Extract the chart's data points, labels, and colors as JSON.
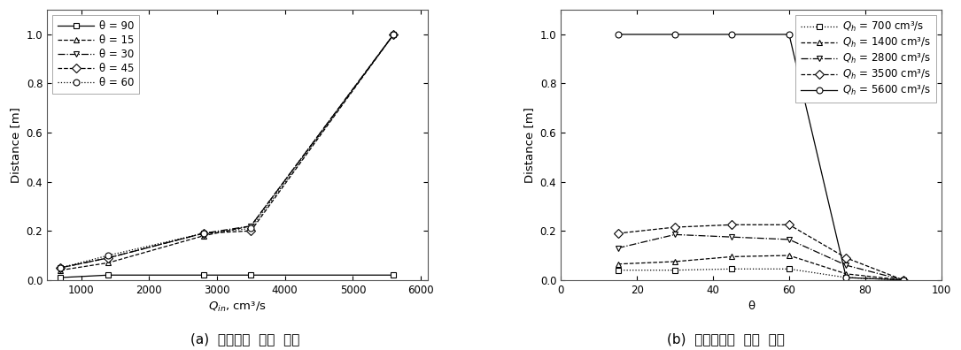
{
  "chart_a": {
    "xlabel_text": "Q",
    "xlabel_sub": "in",
    "xlabel_unit": ", cm³/s",
    "ylabel": "Distance [m]",
    "xlim": [
      500,
      6100
    ],
    "ylim": [
      0,
      1.1
    ],
    "xticks": [
      1000,
      2000,
      3000,
      4000,
      5000,
      6000
    ],
    "yticks": [
      0,
      0.2,
      0.4,
      0.6,
      0.8,
      1.0
    ],
    "series": [
      {
        "label": "θ = 90",
        "linestyle": "-",
        "marker": "s",
        "x": [
          700,
          1400,
          2800,
          3500,
          5600
        ],
        "y": [
          0.01,
          0.02,
          0.02,
          0.02,
          0.02
        ]
      },
      {
        "label": "θ = 15",
        "linestyle": "--",
        "marker": "^",
        "x": [
          700,
          1400,
          2800,
          3500,
          5600
        ],
        "y": [
          0.04,
          0.07,
          0.18,
          0.22,
          1.0
        ]
      },
      {
        "label": "θ = 30",
        "linestyle": "-.",
        "marker": "v",
        "x": [
          700,
          1400,
          2800,
          3500,
          5600
        ],
        "y": [
          0.05,
          0.09,
          0.19,
          0.22,
          1.0
        ]
      },
      {
        "label": "θ = 45",
        "linestyle": "--",
        "marker": "D",
        "x": [
          700,
          1400,
          2800,
          3500,
          5600
        ],
        "y": [
          0.05,
          0.09,
          0.19,
          0.2,
          1.0
        ]
      },
      {
        "label": "θ = 60",
        "linestyle": ":",
        "marker": "o",
        "x": [
          700,
          1400,
          2800,
          3500,
          5600
        ],
        "y": [
          0.05,
          0.1,
          0.19,
          0.21,
          1.0
        ]
      }
    ]
  },
  "chart_b": {
    "xlabel": "θ",
    "ylabel": "Distance [m]",
    "xlim": [
      0,
      100
    ],
    "ylim": [
      0,
      1.1
    ],
    "xticks": [
      0,
      20,
      40,
      60,
      80,
      100
    ],
    "yticks": [
      0,
      0.2,
      0.4,
      0.6,
      0.8,
      1.0
    ],
    "series": [
      {
        "label": "Q",
        "label_sub": "h",
        "label_val": " = 700 cm³/s",
        "linestyle": ":",
        "marker": "s",
        "x": [
          15,
          30,
          45,
          60,
          75,
          90
        ],
        "y": [
          0.04,
          0.04,
          0.045,
          0.045,
          0.01,
          0.0
        ]
      },
      {
        "label": "Q",
        "label_sub": "h",
        "label_val": " = 1400 cm³/s",
        "linestyle": "--",
        "marker": "^",
        "x": [
          15,
          30,
          45,
          60,
          75,
          90
        ],
        "y": [
          0.065,
          0.075,
          0.095,
          0.1,
          0.025,
          0.0
        ]
      },
      {
        "label": "Q",
        "label_sub": "h",
        "label_val": " = 2800 cm³/s",
        "linestyle": "-.",
        "marker": "v",
        "x": [
          15,
          30,
          45,
          60,
          75,
          90
        ],
        "y": [
          0.13,
          0.185,
          0.175,
          0.165,
          0.06,
          0.0
        ]
      },
      {
        "label": "Q",
        "label_sub": "h",
        "label_val": " = 3500 cm³/s",
        "linestyle": "--",
        "marker": "D",
        "x": [
          15,
          30,
          45,
          60,
          75,
          90
        ],
        "y": [
          0.19,
          0.215,
          0.225,
          0.225,
          0.09,
          0.0
        ]
      },
      {
        "label": "Q",
        "label_sub": "h",
        "label_val": " = 5600 cm³/s",
        "linestyle": "-",
        "marker": "o",
        "x": [
          15,
          30,
          45,
          60,
          75,
          90
        ],
        "y": [
          1.0,
          1.0,
          1.0,
          1.0,
          0.01,
          0.0
        ]
      }
    ]
  },
  "caption_a": "(a)  주입량에  따른  거리",
  "caption_b": "(b)  주입각도에  따른  거리",
  "line_color": "black",
  "marker_size": 5,
  "font_size": 8.5,
  "label_font_size": 9.5
}
